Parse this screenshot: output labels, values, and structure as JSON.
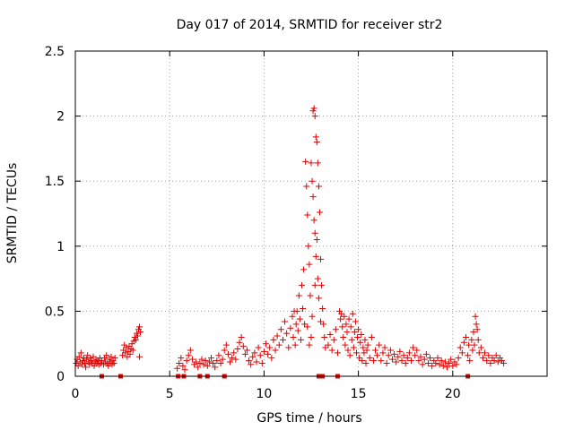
{
  "chart_data": {
    "type": "scatter",
    "title": "Day 017 of 2014, SRMTID for receiver str2",
    "xlabel": "GPS time / hours",
    "ylabel": "SRMTID / TECUs",
    "xlim": [
      0,
      25
    ],
    "ylim": [
      0,
      2.5
    ],
    "x_ticks": [
      0,
      5,
      10,
      15,
      20
    ],
    "y_ticks": [
      0,
      0.5,
      1,
      1.5,
      2,
      2.5
    ],
    "x_tick_labels": [
      "0",
      "5",
      "10",
      "15",
      "20"
    ],
    "y_tick_labels": [
      "0",
      "0.5",
      "1",
      "1.5",
      "2",
      "2.5"
    ],
    "grid": true,
    "marker_color": "#e00000",
    "series": [
      {
        "name": "SRMTID",
        "marker": "plus",
        "points": [
          [
            0.05,
            0.1
          ],
          [
            0.1,
            0.13
          ],
          [
            0.15,
            0.08
          ],
          [
            0.2,
            0.15
          ],
          [
            0.25,
            0.11
          ],
          [
            0.3,
            0.18
          ],
          [
            0.35,
            0.09
          ],
          [
            0.4,
            0.12
          ],
          [
            0.45,
            0.14
          ],
          [
            0.5,
            0.1
          ],
          [
            0.55,
            0.07
          ],
          [
            0.6,
            0.13
          ],
          [
            0.65,
            0.16
          ],
          [
            0.7,
            0.11
          ],
          [
            0.75,
            0.09
          ],
          [
            0.8,
            0.14
          ],
          [
            0.85,
            0.12
          ],
          [
            0.9,
            0.1
          ],
          [
            0.95,
            0.15
          ],
          [
            1.0,
            0.08
          ],
          [
            1.05,
            0.11
          ],
          [
            1.1,
            0.13
          ],
          [
            1.15,
            0.1
          ],
          [
            1.2,
            0.12
          ],
          [
            1.25,
            0.09
          ],
          [
            1.3,
            0.14
          ],
          [
            1.35,
            0.1
          ],
          [
            1.4,
            0.12
          ],
          [
            1.5,
            0.09
          ],
          [
            1.55,
            0.14
          ],
          [
            1.6,
            0.11
          ],
          [
            1.65,
            0.16
          ],
          [
            1.7,
            0.1
          ],
          [
            1.75,
            0.08
          ],
          [
            1.8,
            0.13
          ],
          [
            1.85,
            0.11
          ],
          [
            1.9,
            0.15
          ],
          [
            1.95,
            0.09
          ],
          [
            2.0,
            0.12
          ],
          [
            2.05,
            0.1
          ],
          [
            2.1,
            0.14
          ],
          [
            2.5,
            0.16
          ],
          [
            2.55,
            0.2
          ],
          [
            2.6,
            0.24
          ],
          [
            2.65,
            0.18
          ],
          [
            2.7,
            0.22
          ],
          [
            2.75,
            0.15
          ],
          [
            2.8,
            0.19
          ],
          [
            2.85,
            0.23
          ],
          [
            2.9,
            0.17
          ],
          [
            2.95,
            0.21
          ],
          [
            3.0,
            0.25
          ],
          [
            3.05,
            0.2
          ],
          [
            3.1,
            0.27
          ],
          [
            3.15,
            0.3
          ],
          [
            3.2,
            0.28
          ],
          [
            3.25,
            0.33
          ],
          [
            3.3,
            0.31
          ],
          [
            3.35,
            0.36
          ],
          [
            3.4,
            0.38
          ],
          [
            3.45,
            0.34
          ],
          [
            3.4,
            0.15
          ],
          [
            5.4,
            0.06
          ],
          [
            5.5,
            0.1
          ],
          [
            5.6,
            0.14
          ],
          [
            5.7,
            0.08
          ],
          [
            5.8,
            0.05
          ],
          [
            5.9,
            0.12
          ],
          [
            6.0,
            0.16
          ],
          [
            6.1,
            0.2
          ],
          [
            6.2,
            0.13
          ],
          [
            6.3,
            0.09
          ],
          [
            6.4,
            0.11
          ],
          [
            6.5,
            0.07
          ],
          [
            6.6,
            0.1
          ],
          [
            6.7,
            0.13
          ],
          [
            6.8,
            0.09
          ],
          [
            6.9,
            0.12
          ],
          [
            7.0,
            0.08
          ],
          [
            7.1,
            0.11
          ],
          [
            7.2,
            0.14
          ],
          [
            7.3,
            0.1
          ],
          [
            7.4,
            0.07
          ],
          [
            7.5,
            0.12
          ],
          [
            7.6,
            0.16
          ],
          [
            7.7,
            0.1
          ],
          [
            7.8,
            0.13
          ],
          [
            7.9,
            0.2
          ],
          [
            8.0,
            0.24
          ],
          [
            8.1,
            0.17
          ],
          [
            8.2,
            0.11
          ],
          [
            8.3,
            0.14
          ],
          [
            8.4,
            0.18
          ],
          [
            8.5,
            0.13
          ],
          [
            8.6,
            0.21
          ],
          [
            8.7,
            0.26
          ],
          [
            8.8,
            0.3
          ],
          [
            8.9,
            0.23
          ],
          [
            9.0,
            0.17
          ],
          [
            9.1,
            0.2
          ],
          [
            9.2,
            0.12
          ],
          [
            9.3,
            0.09
          ],
          [
            9.4,
            0.15
          ],
          [
            9.5,
            0.18
          ],
          [
            9.6,
            0.11
          ],
          [
            9.7,
            0.22
          ],
          [
            9.8,
            0.16
          ],
          [
            9.9,
            0.1
          ],
          [
            10.0,
            0.19
          ],
          [
            10.1,
            0.25
          ],
          [
            10.2,
            0.17
          ],
          [
            10.3,
            0.22
          ],
          [
            10.4,
            0.14
          ],
          [
            10.5,
            0.28
          ],
          [
            10.6,
            0.2
          ],
          [
            10.7,
            0.31
          ],
          [
            10.8,
            0.24
          ],
          [
            10.9,
            0.36
          ],
          [
            11.0,
            0.28
          ],
          [
            11.1,
            0.42
          ],
          [
            11.2,
            0.33
          ],
          [
            11.3,
            0.22
          ],
          [
            11.4,
            0.37
          ],
          [
            11.5,
            0.46
          ],
          [
            11.55,
            0.3
          ],
          [
            11.6,
            0.5
          ],
          [
            11.65,
            0.24
          ],
          [
            11.7,
            0.4
          ],
          [
            11.75,
            0.5
          ],
          [
            11.8,
            0.35
          ],
          [
            11.85,
            0.62
          ],
          [
            11.9,
            0.44
          ],
          [
            11.95,
            0.28
          ],
          [
            12.0,
            0.7
          ],
          [
            12.05,
            0.52
          ],
          [
            12.1,
            0.82
          ],
          [
            12.15,
            0.4
          ],
          [
            12.2,
            1.65
          ],
          [
            12.25,
            1.46
          ],
          [
            12.3,
            1.24
          ],
          [
            12.35,
            1.0
          ],
          [
            12.4,
            0.86
          ],
          [
            12.45,
            0.62
          ],
          [
            12.5,
            1.64
          ],
          [
            12.55,
            1.5
          ],
          [
            12.6,
            1.38
          ],
          [
            12.65,
            1.2
          ],
          [
            12.7,
            1.1
          ],
          [
            12.75,
            0.92
          ],
          [
            12.8,
            1.05
          ],
          [
            12.85,
            0.75
          ],
          [
            12.5,
            0.3
          ],
          [
            12.55,
            0.46
          ],
          [
            12.6,
            2.04
          ],
          [
            12.65,
            2.06
          ],
          [
            12.7,
            2.0
          ],
          [
            12.75,
            1.84
          ],
          [
            12.8,
            1.8
          ],
          [
            12.85,
            1.64
          ],
          [
            12.9,
            1.46
          ],
          [
            12.95,
            1.26
          ],
          [
            13.0,
            0.9
          ],
          [
            13.05,
            0.7
          ],
          [
            13.1,
            0.52
          ],
          [
            13.15,
            0.4
          ],
          [
            13.2,
            0.3
          ],
          [
            13.25,
            0.22
          ],
          [
            12.3,
            0.38
          ],
          [
            12.4,
            0.24
          ],
          [
            12.7,
            0.7
          ],
          [
            12.9,
            0.6
          ],
          [
            13.0,
            0.42
          ],
          [
            13.4,
            0.24
          ],
          [
            13.5,
            0.32
          ],
          [
            13.6,
            0.2
          ],
          [
            13.7,
            0.28
          ],
          [
            13.8,
            0.36
          ],
          [
            13.9,
            0.18
          ],
          [
            14.0,
            0.5
          ],
          [
            14.05,
            0.44
          ],
          [
            14.1,
            0.48
          ],
          [
            14.15,
            0.38
          ],
          [
            14.2,
            0.3
          ],
          [
            14.25,
            0.46
          ],
          [
            14.3,
            0.24
          ],
          [
            14.35,
            0.4
          ],
          [
            14.4,
            0.34
          ],
          [
            14.45,
            0.2
          ],
          [
            14.5,
            0.44
          ],
          [
            14.55,
            0.16
          ],
          [
            14.6,
            0.38
          ],
          [
            14.65,
            0.28
          ],
          [
            14.7,
            0.48
          ],
          [
            14.75,
            0.22
          ],
          [
            14.8,
            0.34
          ],
          [
            14.85,
            0.42
          ],
          [
            14.9,
            0.18
          ],
          [
            14.95,
            0.3
          ],
          [
            15.0,
            0.36
          ],
          [
            15.05,
            0.14
          ],
          [
            15.1,
            0.26
          ],
          [
            15.15,
            0.32
          ],
          [
            15.2,
            0.12
          ],
          [
            15.25,
            0.22
          ],
          [
            15.3,
            0.18
          ],
          [
            15.35,
            0.28
          ],
          [
            15.4,
            0.1
          ],
          [
            15.45,
            0.2
          ],
          [
            15.5,
            0.24
          ],
          [
            15.6,
            0.14
          ],
          [
            15.7,
            0.3
          ],
          [
            15.8,
            0.12
          ],
          [
            15.9,
            0.2
          ],
          [
            16.0,
            0.16
          ],
          [
            16.1,
            0.24
          ],
          [
            16.2,
            0.12
          ],
          [
            16.3,
            0.18
          ],
          [
            16.4,
            0.22
          ],
          [
            16.5,
            0.1
          ],
          [
            16.6,
            0.16
          ],
          [
            16.7,
            0.2
          ],
          [
            16.8,
            0.13
          ],
          [
            16.9,
            0.17
          ],
          [
            17.0,
            0.11
          ],
          [
            17.1,
            0.15
          ],
          [
            17.2,
            0.19
          ],
          [
            17.3,
            0.12
          ],
          [
            17.4,
            0.16
          ],
          [
            17.5,
            0.1
          ],
          [
            17.6,
            0.14
          ],
          [
            17.7,
            0.18
          ],
          [
            17.8,
            0.12
          ],
          [
            17.9,
            0.22
          ],
          [
            18.0,
            0.16
          ],
          [
            18.1,
            0.2
          ],
          [
            18.2,
            0.12
          ],
          [
            18.3,
            0.15
          ],
          [
            18.4,
            0.09
          ],
          [
            18.5,
            0.13
          ],
          [
            18.6,
            0.17
          ],
          [
            18.7,
            0.1
          ],
          [
            18.8,
            0.14
          ],
          [
            18.9,
            0.08
          ],
          [
            19.0,
            0.12
          ],
          [
            19.1,
            0.1
          ],
          [
            19.2,
            0.14
          ],
          [
            19.3,
            0.09
          ],
          [
            19.4,
            0.12
          ],
          [
            19.5,
            0.08
          ],
          [
            19.6,
            0.11
          ],
          [
            19.7,
            0.07
          ],
          [
            19.8,
            0.1
          ],
          [
            19.9,
            0.13
          ],
          [
            20.0,
            0.08
          ],
          [
            20.1,
            0.11
          ],
          [
            20.2,
            0.09
          ],
          [
            20.3,
            0.14
          ],
          [
            20.4,
            0.22
          ],
          [
            20.5,
            0.18
          ],
          [
            20.6,
            0.26
          ],
          [
            20.7,
            0.3
          ],
          [
            20.8,
            0.16
          ],
          [
            20.85,
            0.24
          ],
          [
            20.9,
            0.12
          ],
          [
            21.0,
            0.28
          ],
          [
            21.05,
            0.2
          ],
          [
            21.1,
            0.34
          ],
          [
            21.15,
            0.24
          ],
          [
            21.2,
            0.46
          ],
          [
            21.25,
            0.4
          ],
          [
            21.3,
            0.36
          ],
          [
            21.35,
            0.28
          ],
          [
            21.4,
            0.18
          ],
          [
            21.5,
            0.22
          ],
          [
            21.6,
            0.14
          ],
          [
            21.7,
            0.18
          ],
          [
            21.8,
            0.12
          ],
          [
            21.9,
            0.16
          ],
          [
            22.0,
            0.1
          ],
          [
            22.1,
            0.14
          ],
          [
            22.2,
            0.12
          ],
          [
            22.3,
            0.16
          ],
          [
            22.4,
            0.11
          ],
          [
            22.5,
            0.14
          ],
          [
            22.6,
            0.12
          ],
          [
            22.7,
            0.1
          ]
        ]
      },
      {
        "name": "zero markers",
        "marker": "square",
        "points": [
          [
            1.4,
            0
          ],
          [
            2.4,
            0
          ],
          [
            5.45,
            0
          ],
          [
            5.75,
            0
          ],
          [
            6.6,
            0
          ],
          [
            7.0,
            0
          ],
          [
            7.9,
            0
          ],
          [
            12.9,
            0
          ],
          [
            13.1,
            0
          ],
          [
            13.9,
            0
          ],
          [
            20.8,
            0
          ]
        ]
      }
    ]
  }
}
